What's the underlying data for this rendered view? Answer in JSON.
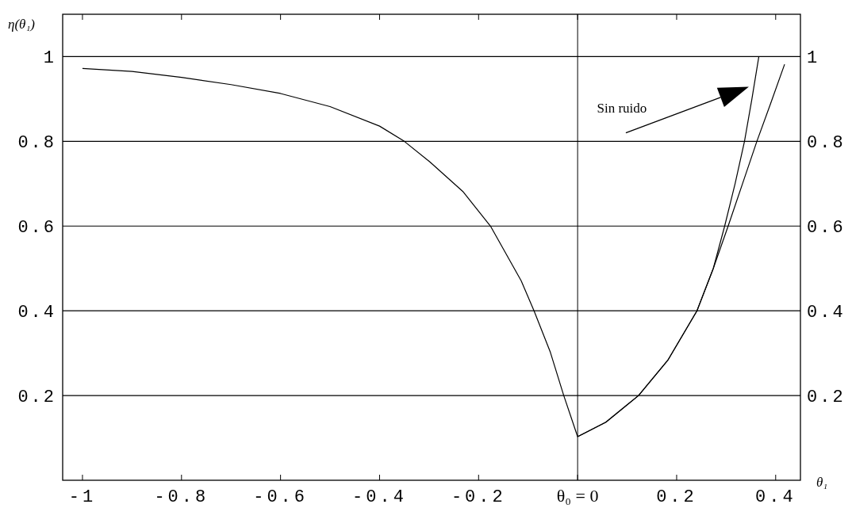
{
  "chart_data": {
    "type": "line",
    "xlabel": "θ₁",
    "ylabel": "η(θ₁)",
    "xlim": [
      -1.04,
      0.45
    ],
    "ylim": [
      0,
      1.1
    ],
    "y2lim": [
      0,
      1.1
    ],
    "xticks": [
      -1,
      -0.8,
      -0.6,
      -0.4,
      -0.2,
      {
        "value": 0,
        "label": "θ₀ = 0"
      },
      0.2,
      0.4
    ],
    "yticks": [
      0.2,
      0.4,
      0.6,
      0.8,
      1
    ],
    "y2ticks": [
      0.2,
      0.4,
      0.6,
      0.8,
      1
    ],
    "grid": "y",
    "marker": "none",
    "line_style": "solid",
    "ref_lines": [
      {
        "axis": "x",
        "value": 0,
        "color": "#000000"
      }
    ],
    "series": [
      {
        "color": "#000000",
        "x": [
          -1,
          -0.9,
          -0.8,
          -0.7,
          -0.6,
          -0.5,
          -0.4,
          -0.35,
          -0.298,
          -0.232,
          -0.176,
          -0.114,
          -0.088,
          -0.055,
          -0.028,
          0,
          0.057,
          0.123,
          0.182,
          0.241,
          0.274,
          0.304,
          0.333,
          0.362,
          0.39,
          0.418
        ],
        "values": [
          0.972,
          0.965,
          0.951,
          0.934,
          0.913,
          0.882,
          0.836,
          0.8,
          0.751,
          0.682,
          0.6,
          0.471,
          0.4,
          0.302,
          0.2,
          0.103,
          0.137,
          0.2,
          0.283,
          0.4,
          0.5,
          0.6,
          0.7,
          0.8,
          0.89,
          0.982
        ]
      },
      {
        "color": "#000000",
        "x": [
          0,
          0.057,
          0.123,
          0.182,
          0.241,
          0.274,
          0.297,
          0.318,
          0.337,
          0.352,
          0.366
        ],
        "values": [
          0.103,
          0.137,
          0.2,
          0.283,
          0.4,
          0.5,
          0.6,
          0.7,
          0.8,
          0.9,
          1
        ]
      }
    ],
    "annotations": [
      "Sin ruido"
    ]
  }
}
